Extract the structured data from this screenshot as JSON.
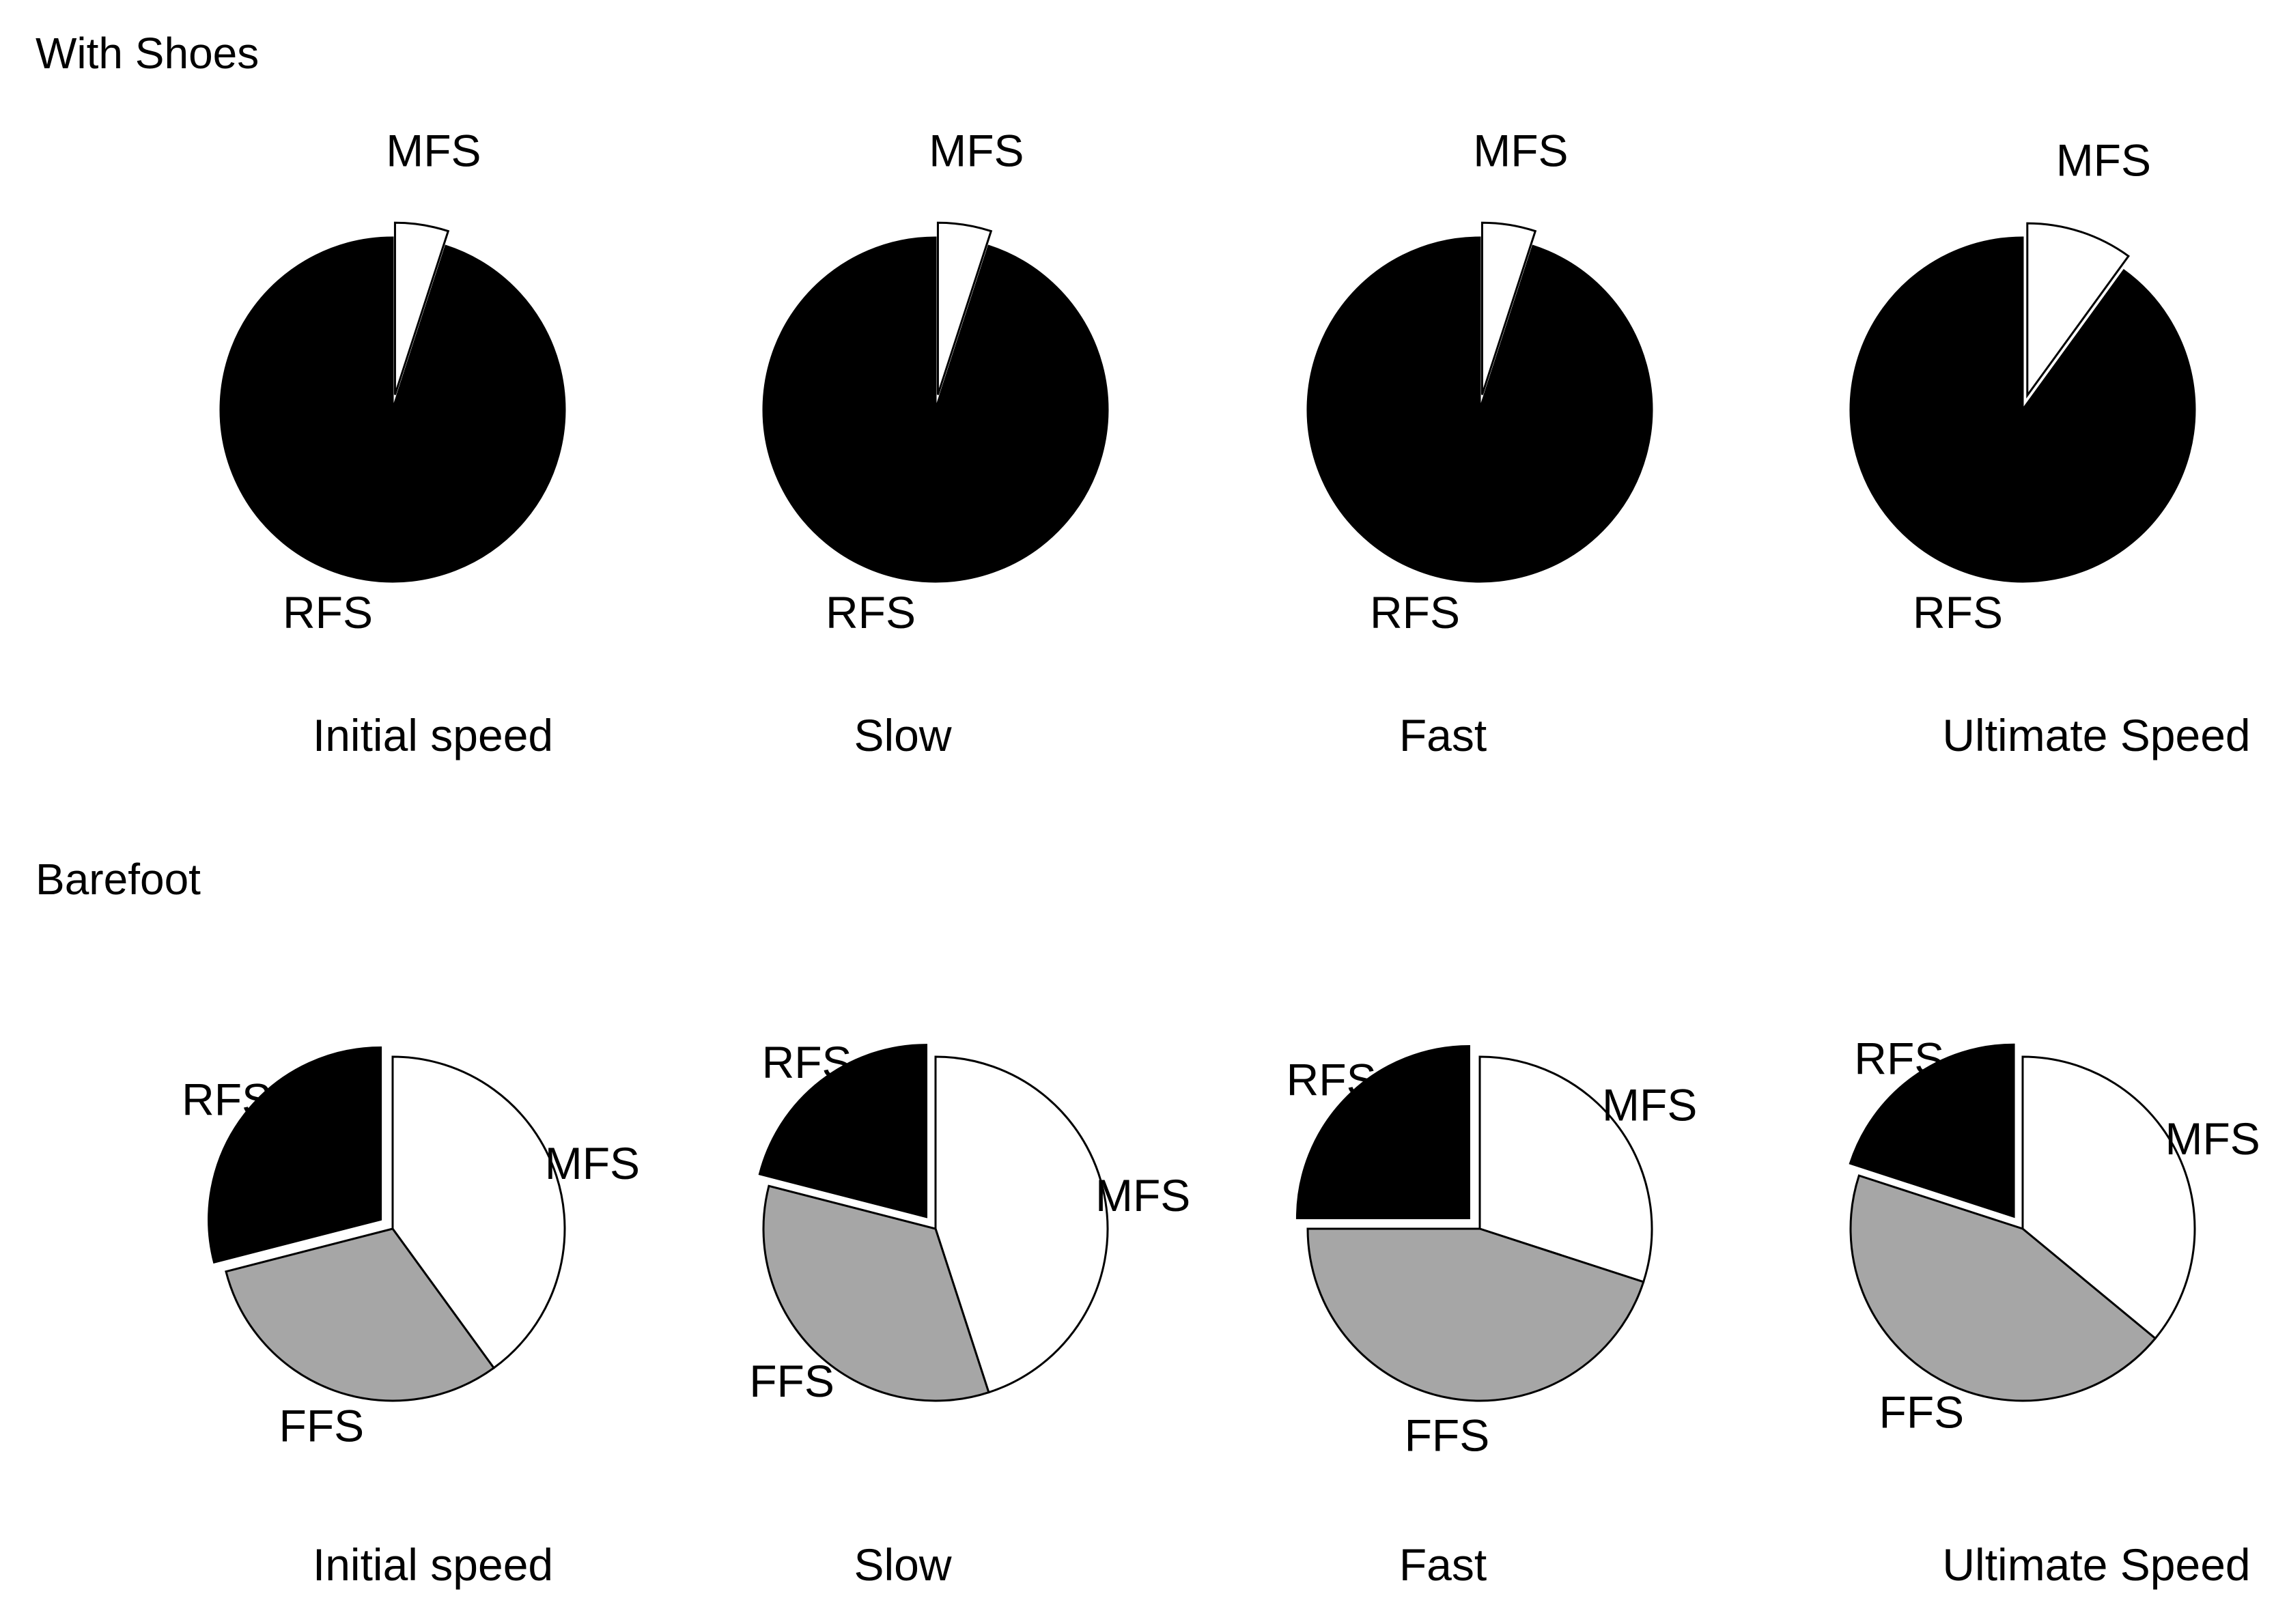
{
  "colors": {
    "RFS": "#000000",
    "MFS": "#ffffff",
    "FFS": "#a6a6a6",
    "outline": "#000000",
    "background": "#ffffff"
  },
  "chart_data": [
    {
      "type": "pie",
      "group": "With Shoes",
      "caption": "Initial speed",
      "slices": [
        {
          "label": "MFS",
          "value": 5,
          "exploded": true
        },
        {
          "label": "RFS",
          "value": 95,
          "exploded": false
        }
      ]
    },
    {
      "type": "pie",
      "group": "With Shoes",
      "caption": "Slow",
      "slices": [
        {
          "label": "MFS",
          "value": 5,
          "exploded": true
        },
        {
          "label": "RFS",
          "value": 95,
          "exploded": false
        }
      ]
    },
    {
      "type": "pie",
      "group": "With Shoes",
      "caption": "Fast",
      "slices": [
        {
          "label": "MFS",
          "value": 5,
          "exploded": true
        },
        {
          "label": "RFS",
          "value": 95,
          "exploded": false
        }
      ]
    },
    {
      "type": "pie",
      "group": "With Shoes",
      "caption": "Ultimate Speed",
      "slices": [
        {
          "label": "MFS",
          "value": 10,
          "exploded": true
        },
        {
          "label": "RFS",
          "value": 90,
          "exploded": false
        }
      ]
    },
    {
      "type": "pie",
      "group": "Barefoot",
      "caption": "Initial speed",
      "slices": [
        {
          "label": "MFS",
          "value": 40,
          "exploded": false
        },
        {
          "label": "FFS",
          "value": 31,
          "exploded": false
        },
        {
          "label": "RFS",
          "value": 29,
          "exploded": true
        }
      ]
    },
    {
      "type": "pie",
      "group": "Barefoot",
      "caption": "Slow",
      "slices": [
        {
          "label": "MFS",
          "value": 45,
          "exploded": false
        },
        {
          "label": "FFS",
          "value": 34,
          "exploded": false
        },
        {
          "label": "RFS",
          "value": 21,
          "exploded": true
        }
      ]
    },
    {
      "type": "pie",
      "group": "Barefoot",
      "caption": "Fast",
      "slices": [
        {
          "label": "MFS",
          "value": 30,
          "exploded": false
        },
        {
          "label": "FFS",
          "value": 45,
          "exploded": false
        },
        {
          "label": "RFS",
          "value": 25,
          "exploded": true
        }
      ]
    },
    {
      "type": "pie",
      "group": "Barefoot",
      "caption": "Ultimate Speed",
      "slices": [
        {
          "label": "MFS",
          "value": 36,
          "exploded": false
        },
        {
          "label": "FFS",
          "value": 44,
          "exploded": false
        },
        {
          "label": "RFS",
          "value": 20,
          "exploded": true
        }
      ]
    }
  ],
  "sections": {
    "top_title": "With Shoes",
    "bottom_title": "Barefoot"
  }
}
